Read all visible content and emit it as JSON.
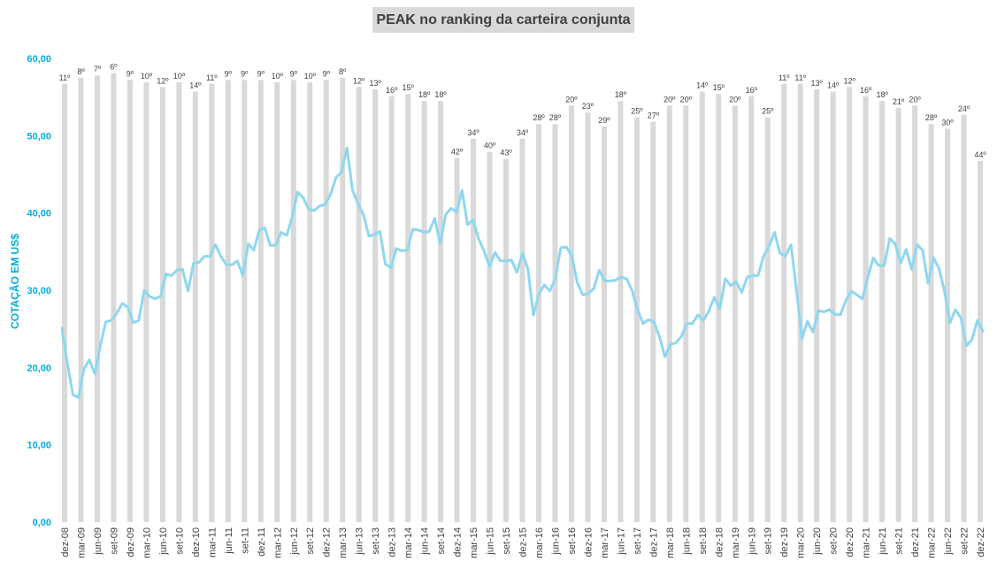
{
  "chart_data": {
    "type": "bar+line",
    "title": "PEAK no ranking da carteira conjunta",
    "ylabel": "COTAÇÃO EM US$",
    "ylim": [
      0,
      60
    ],
    "yticks": [
      "0,00",
      "10,00",
      "20,00",
      "30,00",
      "40,00",
      "50,00",
      "60,00"
    ],
    "colors": {
      "bars": "#d9d9d9",
      "line": "#8fd7f0",
      "yaxis_text": "#00b0d8",
      "label_text": "#404040"
    },
    "x_tick_labels": [
      "dez-08",
      "mar-09",
      "jun-09",
      "set-09",
      "dez-09",
      "mar-10",
      "jun-10",
      "set-10",
      "dez-10",
      "mar-11",
      "jun-11",
      "set-11",
      "dez-11",
      "mar-12",
      "jun-12",
      "set-12",
      "dez-12",
      "mar-13",
      "jun-13",
      "set-13",
      "dez-13",
      "mar-14",
      "jun-14",
      "set-14",
      "dez-14",
      "mar-15",
      "jun-15",
      "set-15",
      "dez-15",
      "mar-16",
      "jun-16",
      "set-16",
      "dez-16",
      "mar-17",
      "jun-17",
      "set-17",
      "dez-17",
      "mar-18",
      "jun-18",
      "set-18",
      "dez-18",
      "mar-19",
      "jun-19",
      "set-19",
      "dez-19",
      "mar-20",
      "jun-20",
      "set-20",
      "dez-20",
      "mar-21",
      "jun-21",
      "set-21",
      "dez-21",
      "mar-22",
      "jun-22",
      "set-22",
      "dez-22"
    ],
    "ranking_series": {
      "name": "ranking",
      "labels": [
        "11º",
        "8º",
        "7º",
        "6º",
        "9º",
        "10º",
        "12º",
        "10º",
        "14º",
        "11º",
        "9º",
        "9º",
        "9º",
        "10º",
        "9º",
        "10º",
        "9º",
        "8º",
        "12º",
        "13º",
        "16º",
        "15º",
        "18º",
        "18º",
        "42º",
        "34º",
        "40º",
        "43º",
        "34º",
        "28º",
        "28º",
        "20º",
        "23º",
        "29º",
        "18º",
        "25º",
        "27º",
        "20º",
        "20º",
        "14º",
        "15º",
        "20º",
        "16º",
        "25º",
        "11º",
        "11º",
        "13º",
        "14º",
        "12º",
        "16º",
        "18º",
        "21º",
        "20º",
        "28º",
        "30º",
        "24º",
        "44º"
      ],
      "bar_heights": [
        56.7,
        57.5,
        57.8,
        58.1,
        57.2,
        56.9,
        56.3,
        56.9,
        55.7,
        56.7,
        57.2,
        57.2,
        57.2,
        56.9,
        57.2,
        56.9,
        57.2,
        57.5,
        56.3,
        56.0,
        55.1,
        55.4,
        54.5,
        54.5,
        47.1,
        49.6,
        47.9,
        47.0,
        49.6,
        51.5,
        51.5,
        53.9,
        53.0,
        51.2,
        54.5,
        52.4,
        51.8,
        53.9,
        53.9,
        55.7,
        55.4,
        53.9,
        55.1,
        52.4,
        56.7,
        56.7,
        56.0,
        55.7,
        56.3,
        55.1,
        54.5,
        53.6,
        53.9,
        51.5,
        50.9,
        52.7,
        46.7
      ]
    },
    "price_series": {
      "name": "cotação",
      "values": [
        25.1,
        20.5,
        16.5,
        16.1,
        19.8,
        21.0,
        19.2,
        22.8,
        25.9,
        26.1,
        27.0,
        28.3,
        27.8,
        25.8,
        26.1,
        30.0,
        29.2,
        28.9,
        29.2,
        32.1,
        31.9,
        32.6,
        32.7,
        29.9,
        33.5,
        33.6,
        34.4,
        34.4,
        35.9,
        34.4,
        33.3,
        33.3,
        33.8,
        31.9,
        36.0,
        35.2,
        37.8,
        38.1,
        35.8,
        35.8,
        37.5,
        37.1,
        39.5,
        42.7,
        42.0,
        40.5,
        40.3,
        40.9,
        41.1,
        42.4,
        44.6,
        45.3,
        48.4,
        43.0,
        41.2,
        39.8,
        37.0,
        37.2,
        37.6,
        33.4,
        32.9,
        35.4,
        35.1,
        35.2,
        37.9,
        37.8,
        37.5,
        37.6,
        39.3,
        36.0,
        39.8,
        40.6,
        40.1,
        42.9,
        38.5,
        39.1,
        36.7,
        35.1,
        33.1,
        34.9,
        33.8,
        33.8,
        33.9,
        32.3,
        34.8,
        32.8,
        26.8,
        29.5,
        30.7,
        29.9,
        31.5,
        35.5,
        35.6,
        34.5,
        31.0,
        29.4,
        29.6,
        30.2,
        32.6,
        31.2,
        31.2,
        31.3,
        31.7,
        31.5,
        30.0,
        27.5,
        25.7,
        26.2,
        25.9,
        24.0,
        21.4,
        23.0,
        23.2,
        24.0,
        25.7,
        25.7,
        26.8,
        26.1,
        27.3,
        29.1,
        27.6,
        31.5,
        30.6,
        31.1,
        29.7,
        31.7,
        31.9,
        31.9,
        34.4,
        35.7,
        37.5,
        34.8,
        34.4,
        35.9,
        30.0,
        23.7,
        26.0,
        24.6,
        27.4,
        27.2,
        27.5,
        26.9,
        26.8,
        28.7,
        29.9,
        29.4,
        28.9,
        31.7,
        34.2,
        33.2,
        33.2,
        36.7,
        36.0,
        33.5,
        35.3,
        32.7,
        35.9,
        35.2,
        30.9,
        34.2,
        32.8,
        29.9,
        25.8,
        27.5,
        26.4,
        22.8,
        23.6,
        26.1,
        24.7
      ]
    }
  }
}
